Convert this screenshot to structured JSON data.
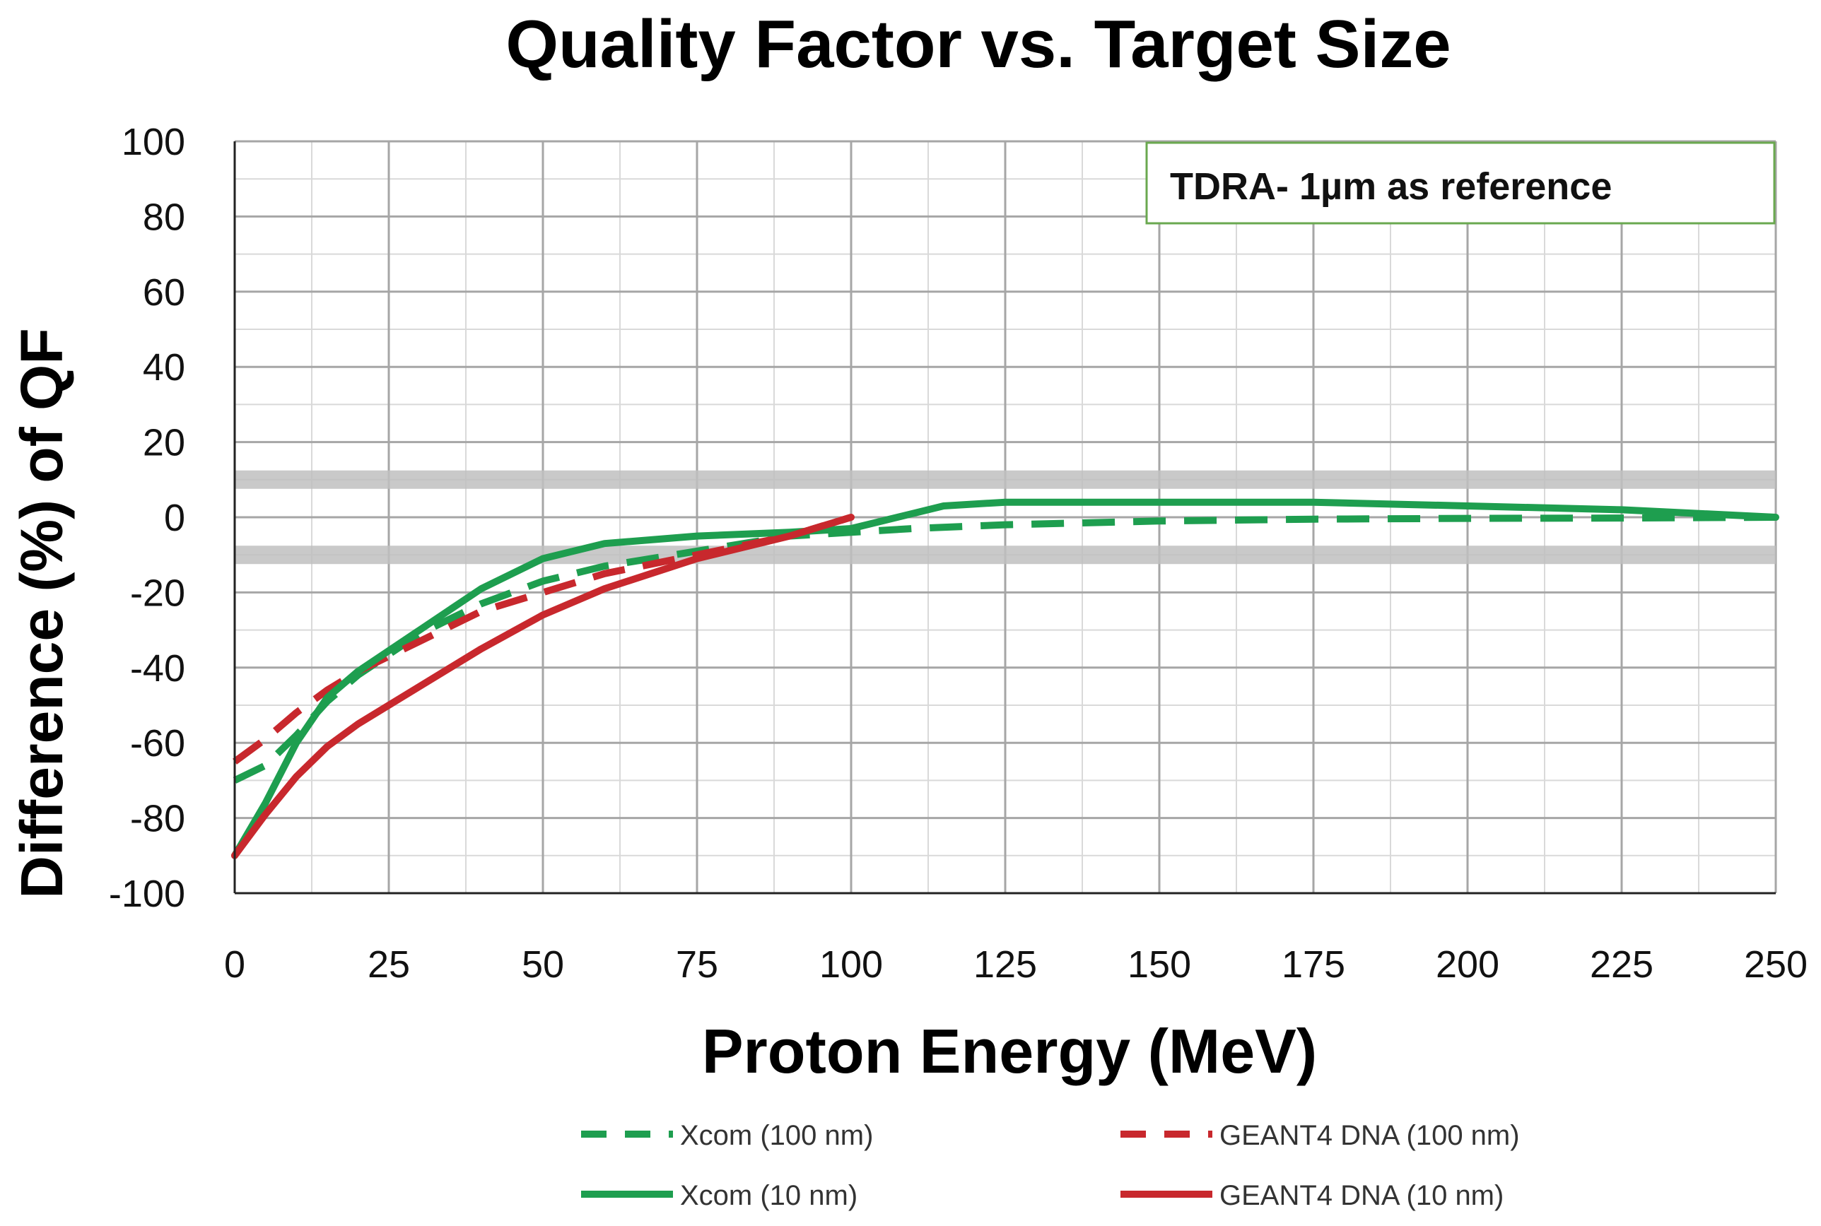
{
  "chart_data": {
    "type": "line",
    "title": "Quality Factor vs. Target Size",
    "xlabel": "Proton Energy (MeV)",
    "ylabel": "Difference (%) of QF",
    "xlim": [
      0,
      250
    ],
    "ylim": [
      -100,
      100
    ],
    "xticks": [
      0,
      25,
      50,
      75,
      100,
      125,
      150,
      175,
      200,
      225,
      250
    ],
    "yticks": [
      100,
      80,
      60,
      40,
      20,
      0,
      -20,
      -40,
      -60,
      -80,
      -100
    ],
    "grid": true,
    "annotation": "TDRA- 1µm as reference",
    "reference_bands": [
      10,
      -10
    ],
    "legend_position": "bottom",
    "series": [
      {
        "name": "Xcom (100 nm)",
        "color": "#1e9e4f",
        "dash": "dashed",
        "x": [
          0,
          5,
          10,
          15,
          20,
          30,
          40,
          50,
          60,
          75,
          90,
          100,
          110,
          125,
          150,
          175,
          200,
          225,
          250
        ],
        "y": [
          -70,
          -66,
          -58,
          -49,
          -42,
          -31,
          -23,
          -17,
          -13,
          -9,
          -5,
          -4,
          -3,
          -2,
          -1,
          -0.5,
          -0.3,
          -0.2,
          0
        ]
      },
      {
        "name": "GEANT4 DNA (100 nm)",
        "color": "#c8282d",
        "dash": "dashed",
        "x": [
          0,
          5,
          10,
          15,
          20,
          30,
          40,
          50,
          60,
          75,
          90,
          100
        ],
        "y": [
          -65,
          -59,
          -52,
          -46,
          -41,
          -33,
          -25,
          -20,
          -15,
          -10,
          -5,
          0
        ]
      },
      {
        "name": "Xcom (10 nm)",
        "color": "#1e9e4f",
        "dash": "solid",
        "x": [
          0,
          5,
          10,
          15,
          20,
          30,
          40,
          50,
          60,
          75,
          90,
          100,
          110,
          115,
          125,
          150,
          175,
          200,
          225,
          250
        ],
        "y": [
          -90,
          -76,
          -60,
          -48,
          -41,
          -30,
          -19,
          -11,
          -7,
          -5,
          -4,
          -3,
          1,
          3,
          4,
          4,
          4,
          3,
          2,
          0
        ]
      },
      {
        "name": "GEANT4 DNA (10 nm)",
        "color": "#c8282d",
        "dash": "solid",
        "x": [
          0,
          5,
          10,
          15,
          20,
          30,
          40,
          50,
          60,
          75,
          90,
          100
        ],
        "y": [
          -90,
          -79,
          -69,
          -61,
          -55,
          -45,
          -35,
          -26,
          -19,
          -11,
          -5,
          0
        ]
      }
    ]
  }
}
